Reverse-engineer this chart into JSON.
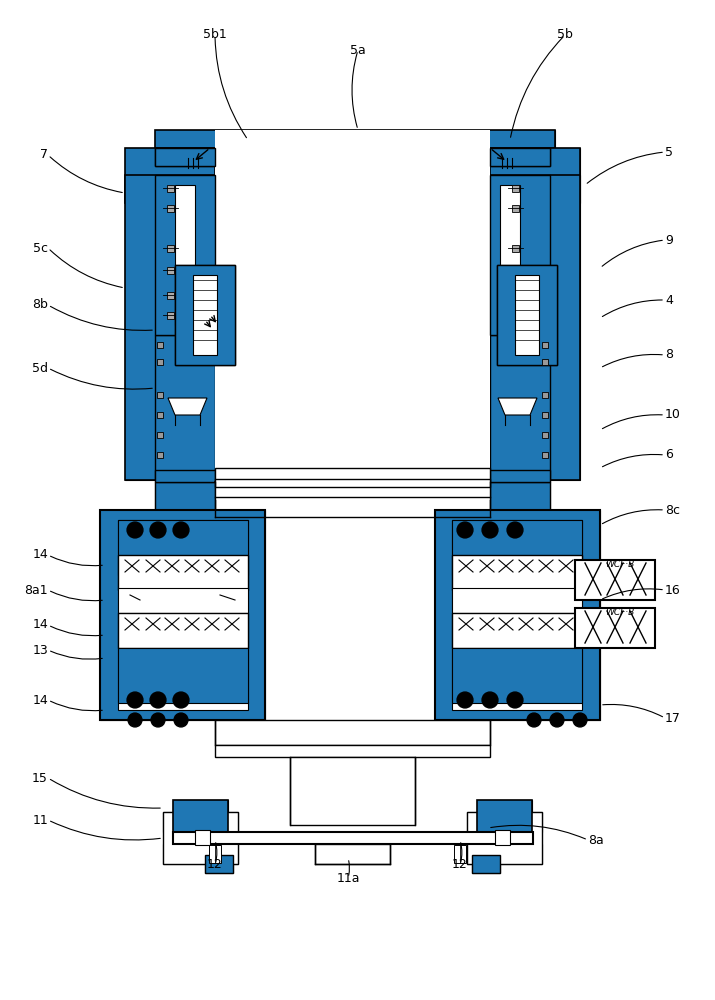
{
  "fig_width": 7.15,
  "fig_height": 10.0,
  "bg_color": "#ffffff",
  "line_color": "#000000",
  "labels": [
    [
      "5b1",
      215,
      35,
      248,
      140,
      "center"
    ],
    [
      "5a",
      358,
      50,
      358,
      130,
      "center"
    ],
    [
      "5b",
      565,
      35,
      510,
      140,
      "center"
    ],
    [
      "7",
      48,
      155,
      125,
      193,
      "right"
    ],
    [
      "5",
      665,
      152,
      585,
      185,
      "left"
    ],
    [
      "5c",
      48,
      248,
      125,
      288,
      "right"
    ],
    [
      "9",
      665,
      240,
      600,
      268,
      "left"
    ],
    [
      "8b",
      48,
      305,
      155,
      330,
      "right"
    ],
    [
      "4",
      665,
      300,
      600,
      318,
      "left"
    ],
    [
      "8",
      665,
      355,
      600,
      368,
      "left"
    ],
    [
      "5d",
      48,
      368,
      155,
      388,
      "right"
    ],
    [
      "10",
      665,
      415,
      600,
      430,
      "left"
    ],
    [
      "6",
      665,
      455,
      600,
      468,
      "left"
    ],
    [
      "8c",
      665,
      510,
      600,
      525,
      "left"
    ],
    [
      "14",
      48,
      555,
      105,
      565,
      "right"
    ],
    [
      "14",
      48,
      625,
      105,
      635,
      "right"
    ],
    [
      "8a1",
      48,
      590,
      105,
      600,
      "right"
    ],
    [
      "13",
      48,
      650,
      105,
      658,
      "right"
    ],
    [
      "14",
      48,
      700,
      105,
      710,
      "right"
    ],
    [
      "15",
      48,
      778,
      163,
      808,
      "right"
    ],
    [
      "11",
      48,
      820,
      163,
      838,
      "right"
    ],
    [
      "12",
      215,
      865,
      215,
      840,
      "center"
    ],
    [
      "11a",
      348,
      878,
      348,
      858,
      "center"
    ],
    [
      "12",
      460,
      865,
      460,
      840,
      "center"
    ],
    [
      "8a",
      588,
      840,
      488,
      828,
      "left"
    ],
    [
      "16",
      665,
      590,
      600,
      600,
      "left"
    ],
    [
      "17",
      665,
      718,
      600,
      705,
      "left"
    ]
  ]
}
